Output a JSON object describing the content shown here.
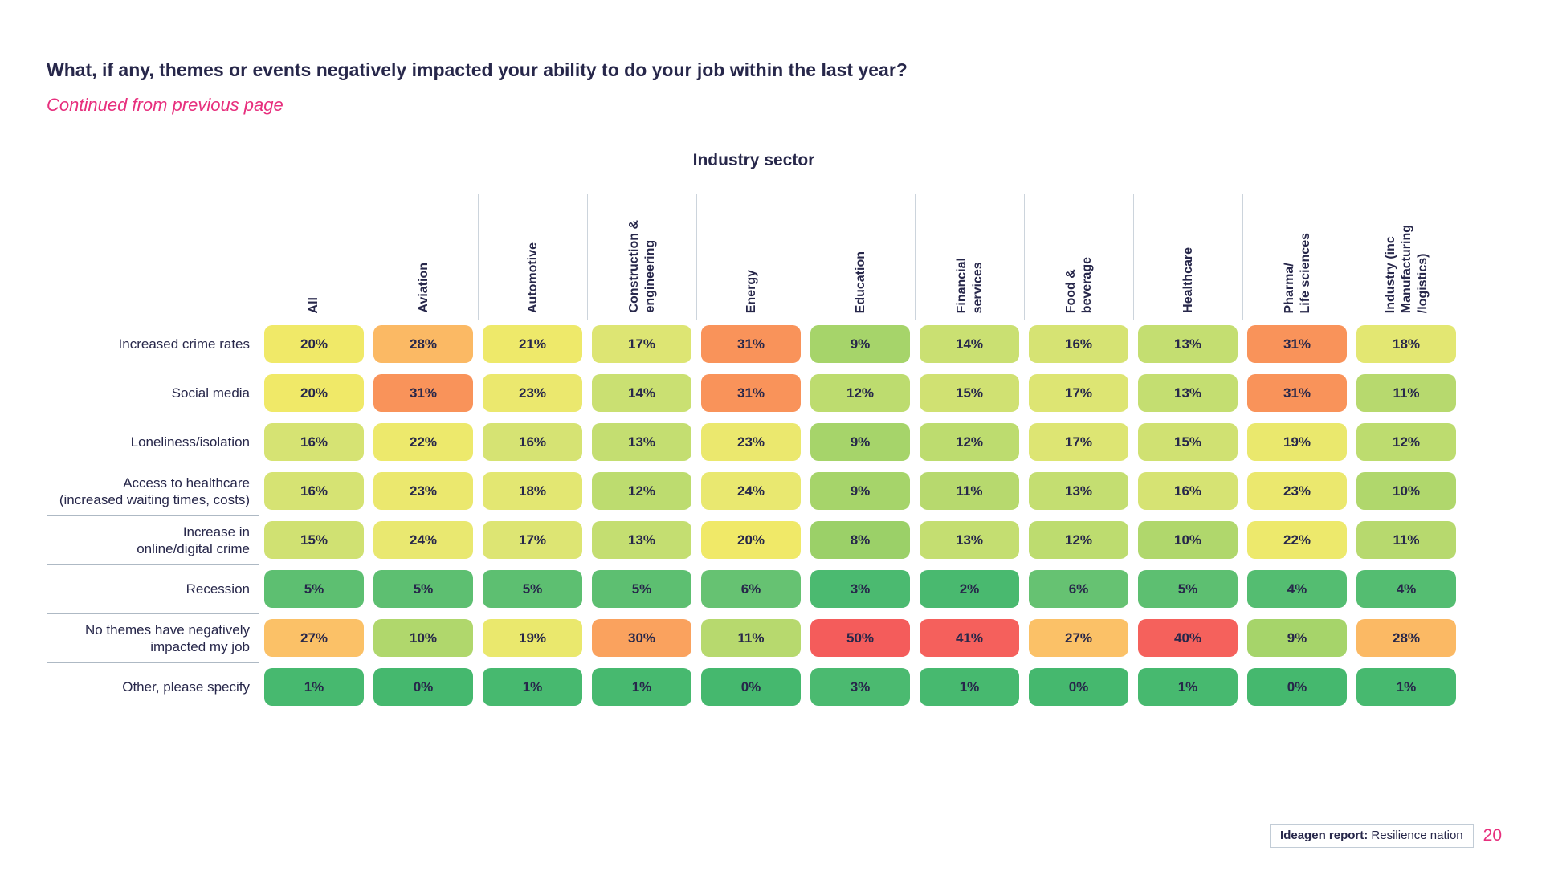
{
  "page": {
    "title": "What, if any, themes or events negatively impacted your ability to do your job within the last year?",
    "continued_note": "Continued from previous page",
    "footer": {
      "report_label_bold": "Ideagen report:",
      "report_label_rest": " Resilience nation",
      "page_number": "20"
    }
  },
  "colors": {
    "text_navy": "#27274a",
    "accent_pink": "#e72f7d",
    "header_divider": "#ccd4dc",
    "row_divider": "#aeb9c4"
  },
  "chart_data": {
    "type": "heatmap",
    "title": "Industry sector",
    "unit": "%",
    "value_range": [
      0,
      50
    ],
    "legend": "none",
    "columns": [
      "All",
      "Aviation",
      "Automotive",
      "Construction &\nengineering",
      "Energy",
      "Education",
      "Financial\nservices",
      "Food &\nbeverage",
      "Healthcare",
      "Pharma/\nLife sciences",
      "Industry (inc\nManufacturing\n/logistics)"
    ],
    "rows": [
      {
        "label": "Increased crime rates",
        "values": [
          20,
          28,
          21,
          17,
          31,
          9,
          14,
          16,
          13,
          31,
          18
        ]
      },
      {
        "label": "Social media",
        "values": [
          20,
          31,
          23,
          14,
          31,
          12,
          15,
          17,
          13,
          31,
          11
        ]
      },
      {
        "label": "Loneliness/isolation",
        "values": [
          16,
          22,
          16,
          13,
          23,
          9,
          12,
          17,
          15,
          19,
          12
        ]
      },
      {
        "label": "Access to healthcare\n(increased waiting times, costs)",
        "values": [
          16,
          23,
          18,
          12,
          24,
          9,
          11,
          13,
          16,
          23,
          10
        ]
      },
      {
        "label": "Increase in\nonline/digital crime",
        "values": [
          15,
          24,
          17,
          13,
          20,
          8,
          13,
          12,
          10,
          22,
          11
        ]
      },
      {
        "label": "Recession",
        "values": [
          5,
          5,
          5,
          5,
          6,
          3,
          2,
          6,
          5,
          4,
          4
        ]
      },
      {
        "label": "No themes have negatively\nimpacted my job",
        "values": [
          27,
          10,
          19,
          30,
          11,
          50,
          41,
          27,
          40,
          9,
          28
        ]
      },
      {
        "label": "Other, please specify",
        "values": [
          1,
          0,
          1,
          1,
          0,
          3,
          1,
          0,
          1,
          0,
          1
        ]
      }
    ],
    "color_scale": [
      [
        0,
        "#45b86e"
      ],
      [
        3,
        "#4bba70"
      ],
      [
        6,
        "#66c272"
      ],
      [
        8,
        "#9bd068"
      ],
      [
        10,
        "#b0d76c"
      ],
      [
        13,
        "#c4de71"
      ],
      [
        16,
        "#d6e373"
      ],
      [
        18,
        "#e3e772"
      ],
      [
        20,
        "#f0e968"
      ],
      [
        24,
        "#e9e870"
      ],
      [
        27,
        "#fbc167"
      ],
      [
        29,
        "#fbb161"
      ],
      [
        31,
        "#f9935a"
      ],
      [
        36,
        "#f7775a"
      ],
      [
        40,
        "#f5615c"
      ],
      [
        55,
        "#f4595b"
      ]
    ]
  }
}
